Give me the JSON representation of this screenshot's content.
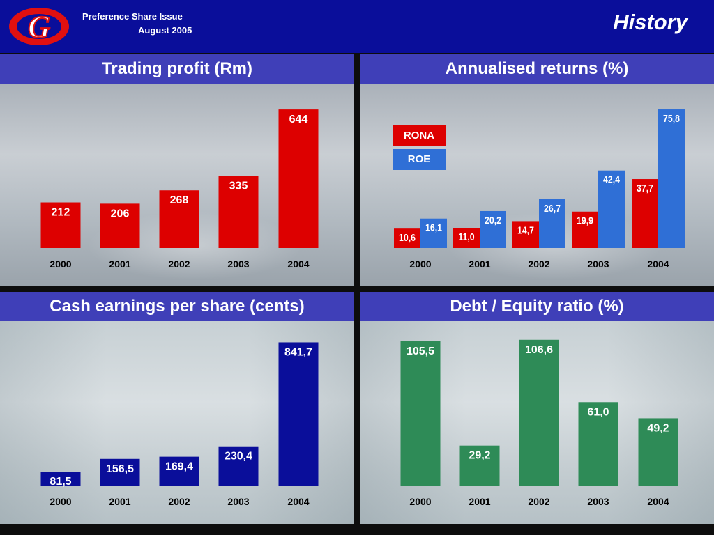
{
  "header": {
    "subtitle_line1": "Preference Share Issue",
    "subtitle_line2": "August  2005",
    "title": "History",
    "logo_letter": "G"
  },
  "colors": {
    "header_bg": "#0a0e9a",
    "band_bg": "#3f3fb8",
    "red": "#dd0000",
    "blue": "#2f6fd6",
    "navy": "#0a0e9a",
    "green": "#2e8b57"
  },
  "chart_data": [
    {
      "type": "bar",
      "title": "Trading profit  (Rm)",
      "categories": [
        "2000",
        "2001",
        "2002",
        "2003",
        "2004"
      ],
      "series": [
        {
          "values": [
            212,
            206,
            268,
            335,
            644
          ],
          "labels": [
            "212",
            "206",
            "268",
            "335",
            "644"
          ],
          "color": "#dd0000"
        }
      ],
      "ylim": [
        0,
        680
      ],
      "grid": false
    },
    {
      "type": "bar",
      "title": "Annualised returns  (%)",
      "categories": [
        "2000",
        "2001",
        "2002",
        "2003",
        "2004"
      ],
      "series": [
        {
          "name": "RONA",
          "values": [
            10.6,
            11.0,
            14.7,
            19.9,
            37.7
          ],
          "labels": [
            "10,6",
            "11,0",
            "14,7",
            "19,9",
            "37,7"
          ],
          "color": "#dd0000"
        },
        {
          "name": "ROE",
          "values": [
            16.1,
            20.2,
            26.7,
            42.4,
            75.8
          ],
          "labels": [
            "16,1",
            "20,2",
            "26,7",
            "42,4",
            "75,8"
          ],
          "color": "#2f6fd6"
        }
      ],
      "legend": "top-left",
      "ylim": [
        0,
        80
      ],
      "grid": false
    },
    {
      "type": "bar",
      "title": "Cash earnings per share  (cents)",
      "categories": [
        "2000",
        "2001",
        "2002",
        "2003",
        "2004"
      ],
      "series": [
        {
          "values": [
            81.5,
            156.5,
            169.4,
            230.4,
            841.7
          ],
          "labels": [
            "81,5",
            "156,5",
            "169,4",
            "230,4",
            "841,7"
          ],
          "color": "#0a0e9a"
        }
      ],
      "ylim": [
        0,
        860
      ],
      "grid": false
    },
    {
      "type": "bar",
      "title": "Debt / Equity ratio  (%)",
      "categories": [
        "2000",
        "2001",
        "2002",
        "2003",
        "2004"
      ],
      "series": [
        {
          "values": [
            105.5,
            29.2,
            106.6,
            61.0,
            49.2
          ],
          "labels": [
            "105,5",
            "29,2",
            "106,6",
            "61,0",
            "49,2"
          ],
          "color": "#2e8b57"
        }
      ],
      "ylim": [
        0,
        107
      ],
      "grid": false
    }
  ]
}
